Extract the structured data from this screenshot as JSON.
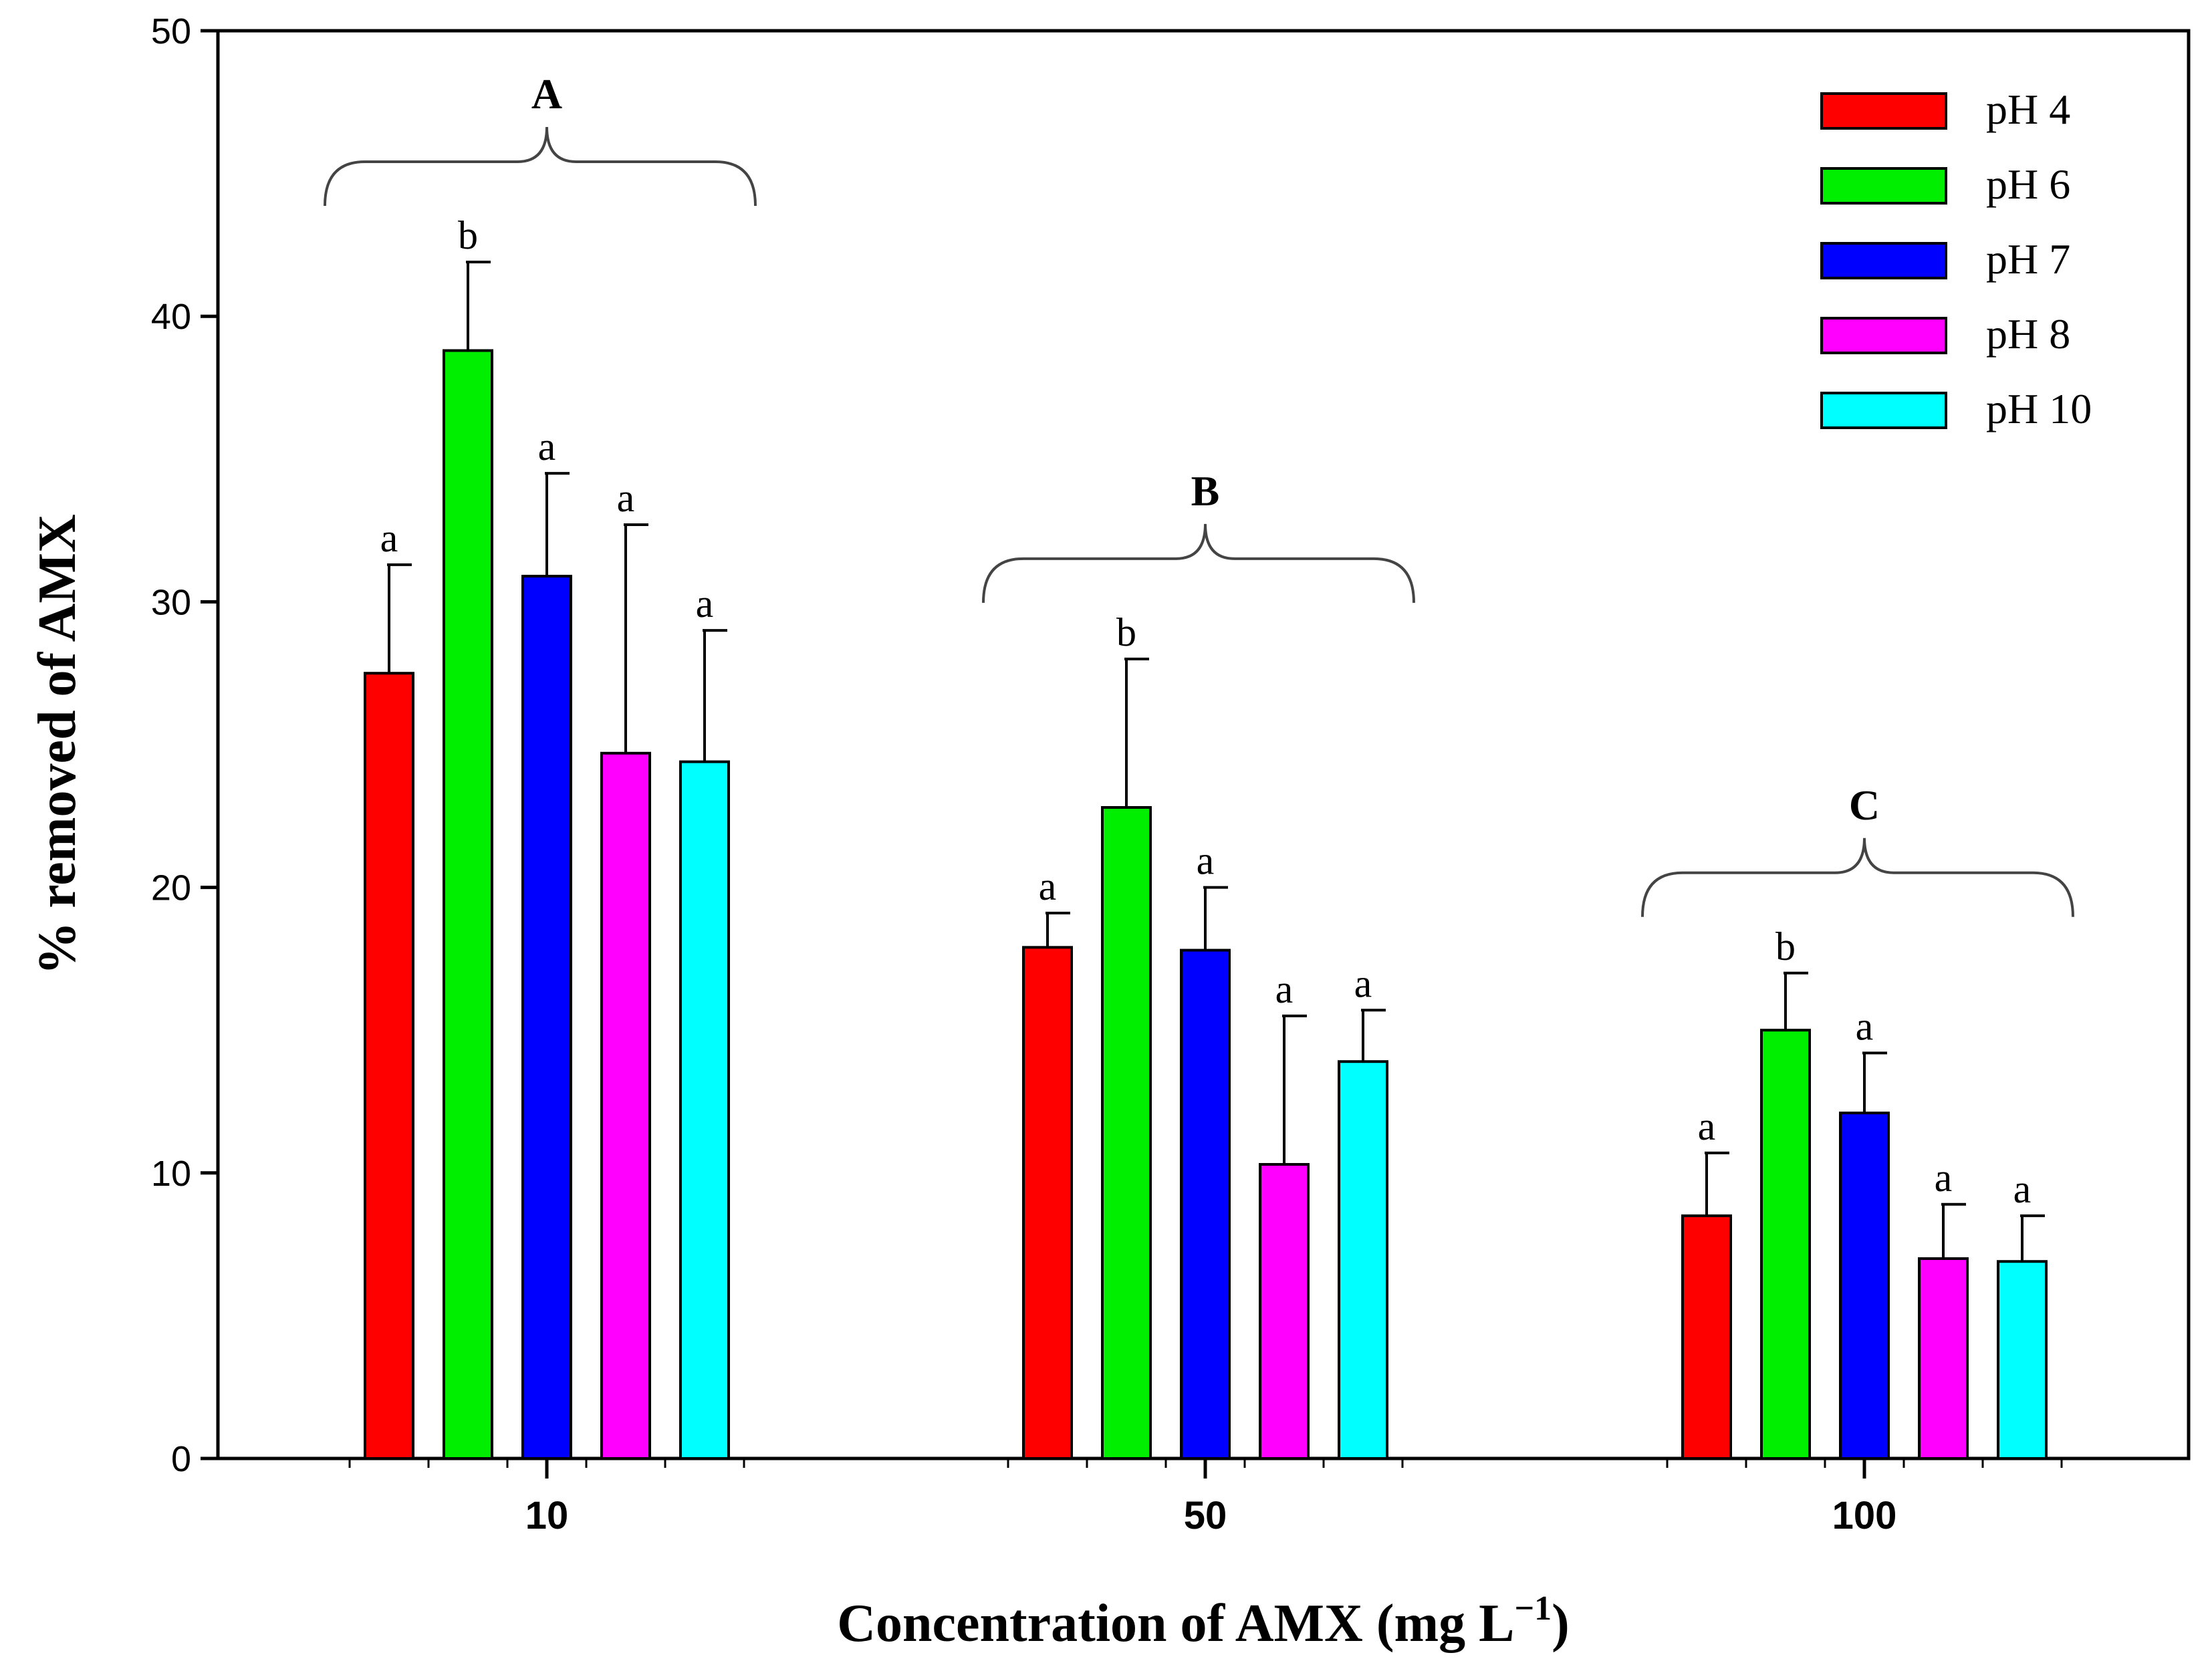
{
  "chart_data": {
    "type": "bar",
    "xlabel": "Concentration of AMX (mg L",
    "xlabel_superscript": "−1",
    "xlabel_suffix": ")",
    "ylabel": "% removed of AMX",
    "ylim": [
      0,
      50
    ],
    "yticks": [
      "0",
      "10",
      "20",
      "30",
      "40",
      "50"
    ],
    "categories": [
      "10",
      "50",
      "100"
    ],
    "legend_position": "top-right",
    "grid": false,
    "series": [
      {
        "name": "pH 4",
        "color": "#ff0000",
        "values": [
          27.5,
          17.9,
          8.5
        ],
        "errors": [
          3.8,
          1.2,
          2.2
        ],
        "sig": [
          "a",
          "a",
          "a"
        ]
      },
      {
        "name": "pH 6",
        "color": "#00ee00",
        "values": [
          38.8,
          22.8,
          15.0
        ],
        "errors": [
          3.1,
          5.2,
          2.0
        ],
        "sig": [
          "b",
          "b",
          "b"
        ]
      },
      {
        "name": "pH 7",
        "color": "#0000ff",
        "values": [
          30.9,
          17.8,
          12.1
        ],
        "errors": [
          3.6,
          2.2,
          2.1
        ],
        "sig": [
          "a",
          "a",
          "a"
        ]
      },
      {
        "name": "pH 8",
        "color": "#ff00ff",
        "values": [
          24.7,
          10.3,
          7.0
        ],
        "errors": [
          8.0,
          5.2,
          1.9
        ],
        "sig": [
          "a",
          "a",
          "a"
        ]
      },
      {
        "name": "pH 10",
        "color": "#00ffff",
        "values": [
          24.4,
          13.9,
          6.9
        ],
        "errors": [
          4.6,
          1.8,
          1.6
        ],
        "sig": [
          "a",
          "a",
          "a"
        ]
      }
    ],
    "group_labels": [
      "A",
      "B",
      "C"
    ]
  }
}
